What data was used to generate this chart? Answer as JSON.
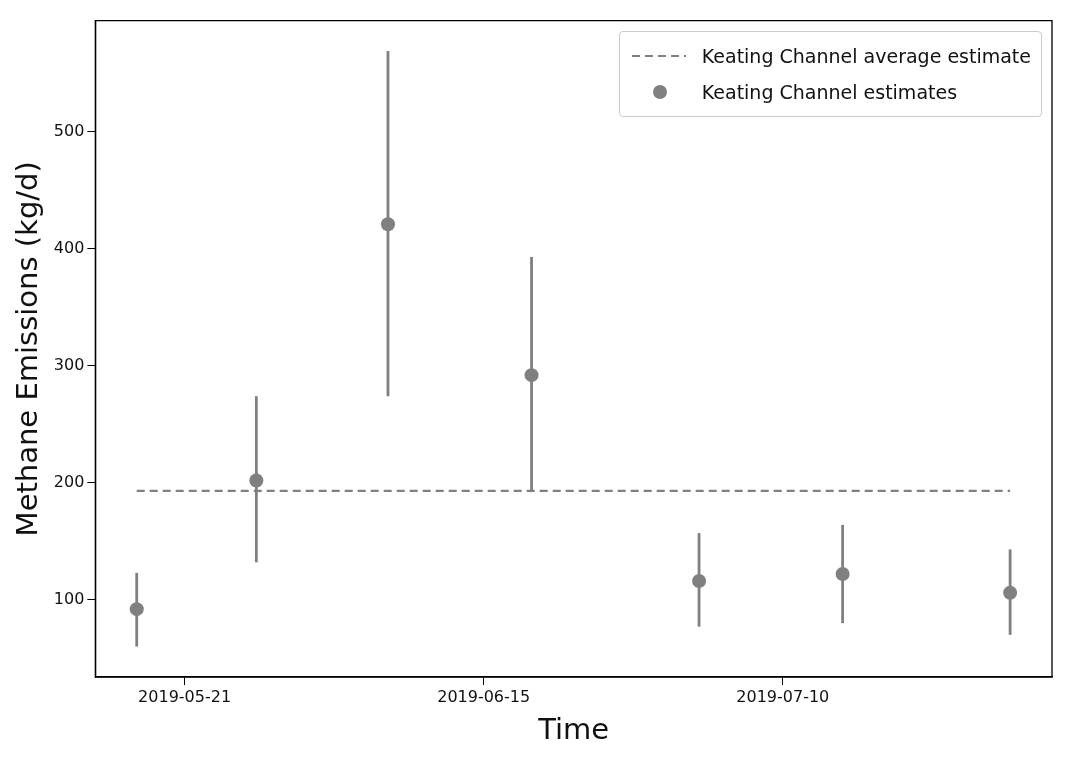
{
  "chart_data": {
    "type": "scatter",
    "xlabel": "Time",
    "ylabel": "Methane Emissions (kg/d)",
    "xlim": [
      "2019-05-13T13:00",
      "2019-08-01T12:00"
    ],
    "xticks": [
      "2019-05-21",
      "2019-06-15",
      "2019-07-10"
    ],
    "ylim": [
      34,
      595
    ],
    "yticks": [
      100,
      200,
      300,
      400,
      500
    ],
    "legend": "top right",
    "series": [
      {
        "name": "Keating Channel average estimate",
        "type": "line",
        "color": "#808080",
        "line_style": "dashed",
        "marker": "none",
        "x": [
          "2019-05-17",
          "2019-07-29"
        ],
        "values": [
          193,
          193
        ]
      },
      {
        "name": "Keating Channel estimates",
        "color": "#808080",
        "marker": "circle",
        "x": [
          "2019-05-17",
          "2019-05-27",
          "2019-06-07",
          "2019-06-19",
          "2019-07-03",
          "2019-07-15",
          "2019-07-29"
        ],
        "values": [
          92,
          202,
          421,
          292,
          116,
          122,
          106
        ],
        "errors": [
          [
            60,
            123
          ],
          [
            132,
            274
          ],
          [
            274,
            569
          ],
          [
            192,
            393
          ],
          [
            77,
            157
          ],
          [
            80,
            164
          ],
          [
            70,
            143
          ]
        ]
      }
    ]
  }
}
